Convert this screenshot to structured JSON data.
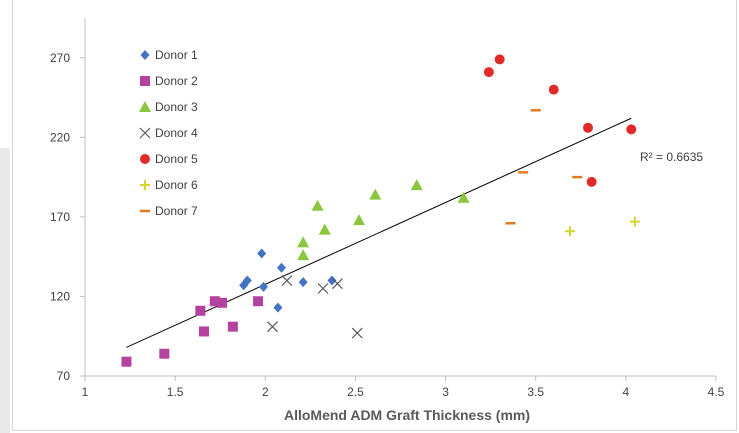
{
  "chart_data": {
    "type": "scatter",
    "title": "",
    "xlabel": "AlloMend ADM Graft Thickness (mm)",
    "ylabel": "",
    "xlim": [
      1,
      4.5
    ],
    "ylim": [
      70,
      295
    ],
    "x_ticks": [
      1,
      1.5,
      2,
      2.5,
      3,
      3.5,
      4,
      4.5
    ],
    "y_ticks": [
      70,
      120,
      170,
      220,
      270
    ],
    "grid": false,
    "legend_position": "top-left",
    "series": [
      {
        "name": "Donor 1",
        "marker": "diamond",
        "color": "#4472c4",
        "points": [
          [
            1.88,
            127
          ],
          [
            1.9,
            130
          ],
          [
            1.98,
            147
          ],
          [
            1.99,
            126
          ],
          [
            2.07,
            113
          ],
          [
            2.09,
            138
          ],
          [
            2.21,
            129
          ],
          [
            2.37,
            130
          ]
        ]
      },
      {
        "name": "Donor 2",
        "marker": "square",
        "color": "#b4439f",
        "points": [
          [
            1.23,
            79
          ],
          [
            1.44,
            84
          ],
          [
            1.64,
            111
          ],
          [
            1.66,
            98
          ],
          [
            1.72,
            117
          ],
          [
            1.76,
            116
          ],
          [
            1.82,
            101
          ],
          [
            1.96,
            117
          ]
        ]
      },
      {
        "name": "Donor 3",
        "marker": "triangle",
        "color": "#8cc63f",
        "points": [
          [
            2.21,
            146
          ],
          [
            2.21,
            154
          ],
          [
            2.29,
            177
          ],
          [
            2.33,
            162
          ],
          [
            2.52,
            168
          ],
          [
            2.61,
            184
          ],
          [
            2.84,
            190
          ],
          [
            3.1,
            182
          ]
        ]
      },
      {
        "name": "Donor 4",
        "marker": "x",
        "color": "#595959",
        "points": [
          [
            2.04,
            101
          ],
          [
            2.12,
            130
          ],
          [
            2.32,
            125
          ],
          [
            2.4,
            128
          ],
          [
            2.51,
            97
          ]
        ]
      },
      {
        "name": "Donor 5",
        "marker": "circle",
        "color": "#e02b2b",
        "points": [
          [
            3.24,
            261
          ],
          [
            3.3,
            269
          ],
          [
            3.6,
            250
          ],
          [
            3.79,
            226
          ],
          [
            3.81,
            192
          ],
          [
            4.03,
            225
          ]
        ]
      },
      {
        "name": "Donor 6",
        "marker": "plus",
        "color": "#d6d42f",
        "points": [
          [
            3.69,
            161
          ],
          [
            4.05,
            167
          ]
        ]
      },
      {
        "name": "Donor 7",
        "marker": "dash",
        "color": "#e07b1f",
        "points": [
          [
            3.36,
            166
          ],
          [
            3.43,
            198
          ],
          [
            3.5,
            237
          ],
          [
            3.73,
            195
          ]
        ]
      }
    ],
    "trendline": {
      "x": [
        1.23,
        4.03
      ],
      "y": [
        88,
        232
      ],
      "color": "#000000"
    },
    "annotation": "R² = 0.6635"
  }
}
